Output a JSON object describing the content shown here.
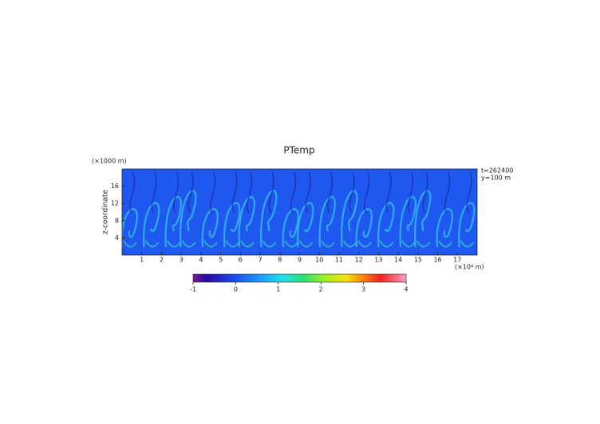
{
  "chart_data": {
    "type": "contour",
    "title": "PTemp",
    "ylabel": "z-coordinate",
    "y_unit_label": "(×1000 m)",
    "x_unit_label": "(×10⁴ m)",
    "annotations": [
      "t=262400",
      "y=100 m"
    ],
    "xlim": [
      0,
      18
    ],
    "xticks": [
      1,
      2,
      3,
      4,
      5,
      6,
      7,
      8,
      9,
      10,
      11,
      12,
      13,
      14,
      15,
      16,
      17
    ],
    "ylim": [
      0,
      20
    ],
    "yticks": [
      4,
      8,
      12,
      16
    ],
    "colorbar": {
      "lim": [
        -1,
        4
      ],
      "ticks": [
        -1,
        0,
        1,
        2,
        3,
        4
      ]
    }
  }
}
